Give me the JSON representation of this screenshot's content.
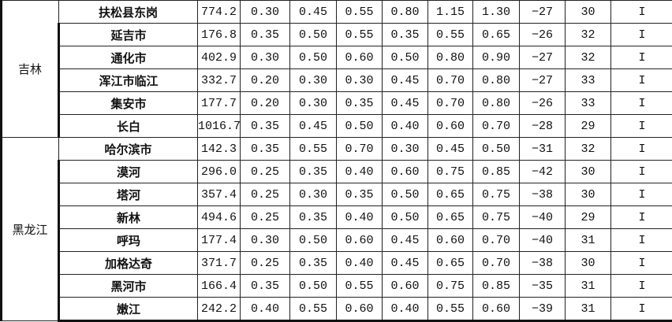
{
  "groups": [
    {
      "province": "吉林",
      "rows": [
        [
          "扶松县东岗",
          "774.2",
          "0.30",
          "0.45",
          "0.55",
          "0.80",
          "1.15",
          "1.30",
          "−27",
          "30",
          "I"
        ],
        [
          "延吉市",
          "176.8",
          "0.35",
          "0.50",
          "0.55",
          "0.35",
          "0.55",
          "0.65",
          "−26",
          "32",
          "I"
        ],
        [
          "通化市",
          "402.9",
          "0.30",
          "0.50",
          "0.60",
          "0.50",
          "0.80",
          "0.90",
          "−27",
          "32",
          "I"
        ],
        [
          "浑江市临江",
          "332.7",
          "0.20",
          "0.30",
          "0.30",
          "0.45",
          "0.70",
          "0.80",
          "−27",
          "33",
          "I"
        ],
        [
          "集安市",
          "177.7",
          "0.20",
          "0.30",
          "0.35",
          "0.45",
          "0.70",
          "0.80",
          "−26",
          "33",
          "I"
        ],
        [
          "长白",
          "1016.7",
          "0.35",
          "0.45",
          "0.50",
          "0.40",
          "0.60",
          "0.70",
          "−28",
          "29",
          "I"
        ]
      ]
    },
    {
      "province": "黑龙江",
      "rows": [
        [
          "哈尔滨市",
          "142.3",
          "0.35",
          "0.55",
          "0.70",
          "0.30",
          "0.45",
          "0.50",
          "−31",
          "32",
          "I"
        ],
        [
          "漠河",
          "296.0",
          "0.25",
          "0.35",
          "0.40",
          "0.60",
          "0.75",
          "0.85",
          "−42",
          "30",
          "I"
        ],
        [
          "塔河",
          "357.4",
          "0.25",
          "0.30",
          "0.35",
          "0.50",
          "0.65",
          "0.75",
          "−38",
          "30",
          "I"
        ],
        [
          "新林",
          "494.6",
          "0.25",
          "0.35",
          "0.40",
          "0.50",
          "0.65",
          "0.75",
          "−40",
          "29",
          "I"
        ],
        [
          "呼玛",
          "177.4",
          "0.30",
          "0.50",
          "0.60",
          "0.45",
          "0.60",
          "0.70",
          "−40",
          "31",
          "I"
        ],
        [
          "加格达奇",
          "371.7",
          "0.25",
          "0.35",
          "0.40",
          "0.45",
          "0.65",
          "0.70",
          "−38",
          "30",
          "I"
        ],
        [
          "黑河市",
          "166.4",
          "0.35",
          "0.50",
          "0.55",
          "0.60",
          "0.75",
          "0.85",
          "−35",
          "31",
          "I"
        ],
        [
          "嫩江",
          "242.2",
          "0.40",
          "0.55",
          "0.60",
          "0.40",
          "0.55",
          "0.60",
          "−39",
          "31",
          "I"
        ]
      ]
    }
  ]
}
